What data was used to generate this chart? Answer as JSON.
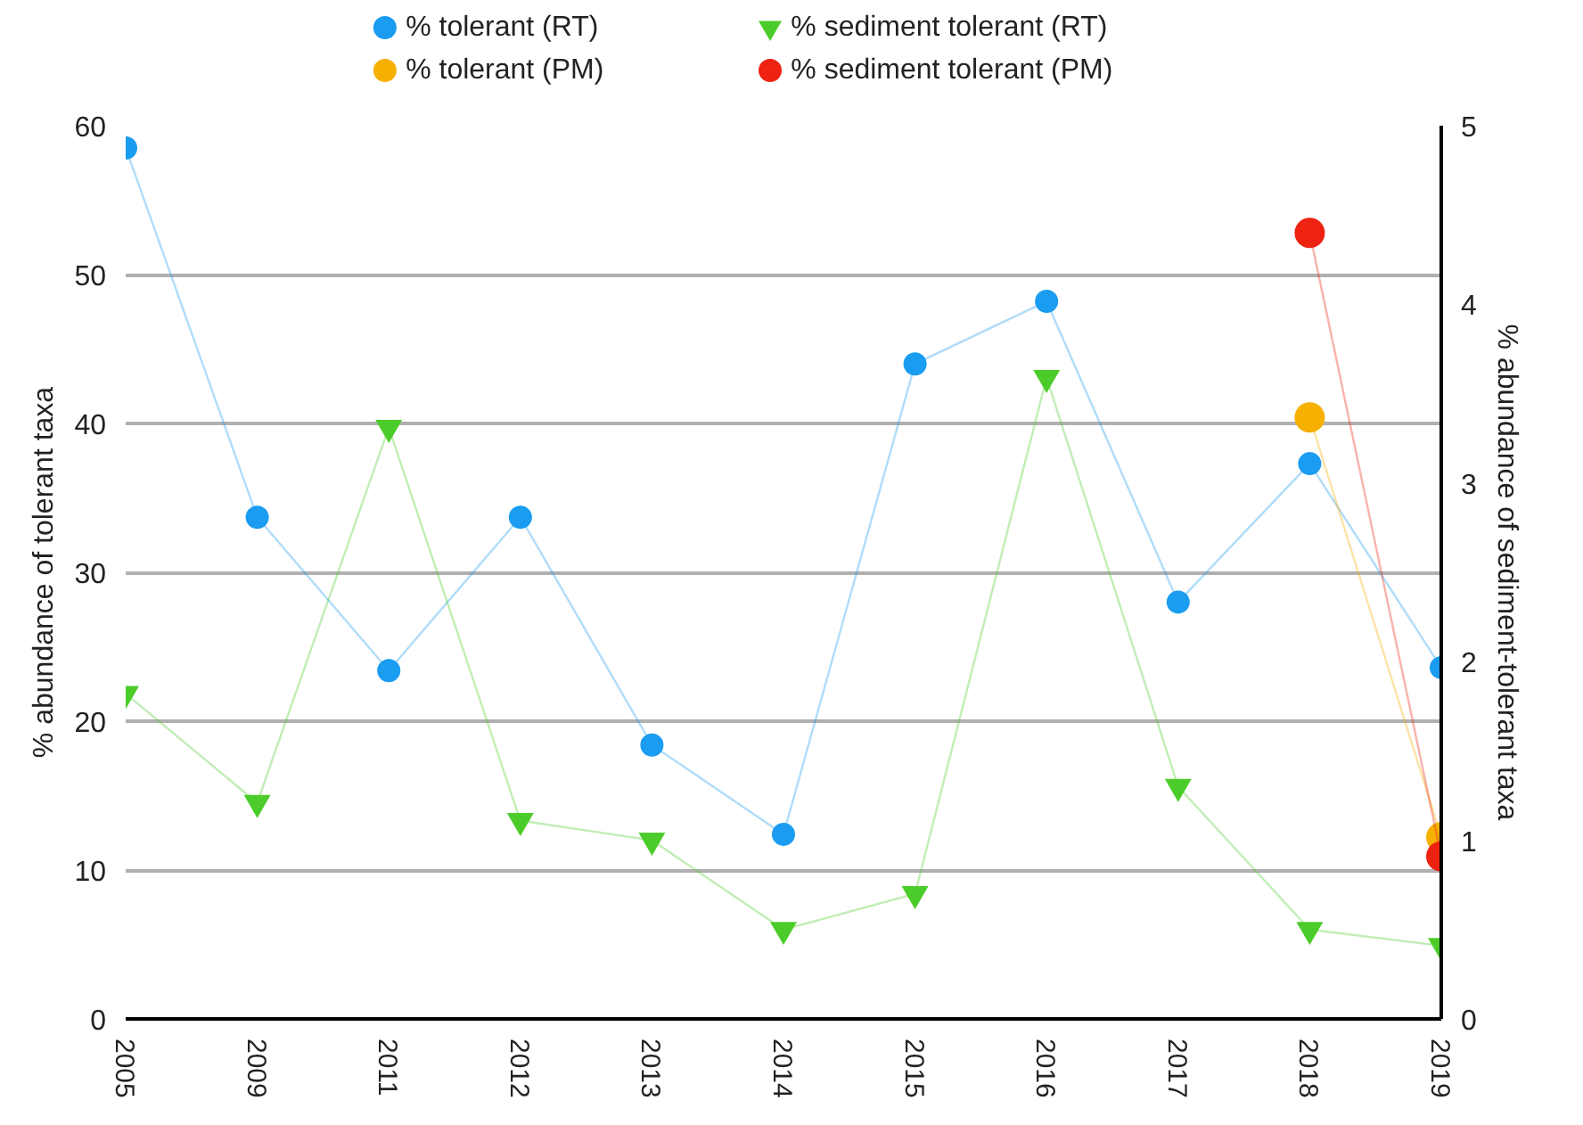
{
  "chart_data": {
    "type": "line",
    "ylabel": "% abundance of tolerant taxa",
    "y2label": "% abundance of sediment-tolerant taxa",
    "categories": [
      "2005",
      "2009",
      "2011",
      "2012",
      "2013",
      "2014",
      "2015",
      "2016",
      "2017",
      "2018",
      "2019"
    ],
    "series": [
      {
        "name": "% tolerant (RT)",
        "color": "#1a9cf0",
        "marker": "circle",
        "values": [
          58.5,
          33.7,
          23.4,
          33.7,
          18.4,
          12.4,
          44.0,
          48.2,
          28.0,
          37.3,
          23.6
        ]
      },
      {
        "name": "% sediment tolerant (RT)",
        "color": "#4ccc2a",
        "marker": "triangle",
        "axis": "y2",
        "values": [
          1.82,
          1.21,
          3.31,
          1.11,
          1.0,
          0.5,
          0.7,
          3.59,
          1.3,
          0.5,
          0.41
        ]
      },
      {
        "name": "% tolerant (PM)",
        "color": "#f5b000",
        "marker": "circle",
        "values": [
          null,
          null,
          null,
          null,
          null,
          null,
          null,
          null,
          null,
          40.4,
          12.2
        ]
      },
      {
        "name": "% sediment tolerant (PM)",
        "color": "#ee2211",
        "marker": "circle",
        "axis": "y2",
        "values": [
          null,
          null,
          null,
          null,
          null,
          null,
          null,
          null,
          null,
          4.4,
          0.91
        ]
      }
    ],
    "ylim": [
      0,
      60
    ],
    "yticks": [
      0,
      10,
      20,
      30,
      40,
      50,
      60
    ],
    "y2lim": [
      0,
      5
    ],
    "y2ticks": [
      0,
      1,
      2,
      3,
      4,
      5
    ],
    "grid": "y",
    "legend": "top"
  }
}
